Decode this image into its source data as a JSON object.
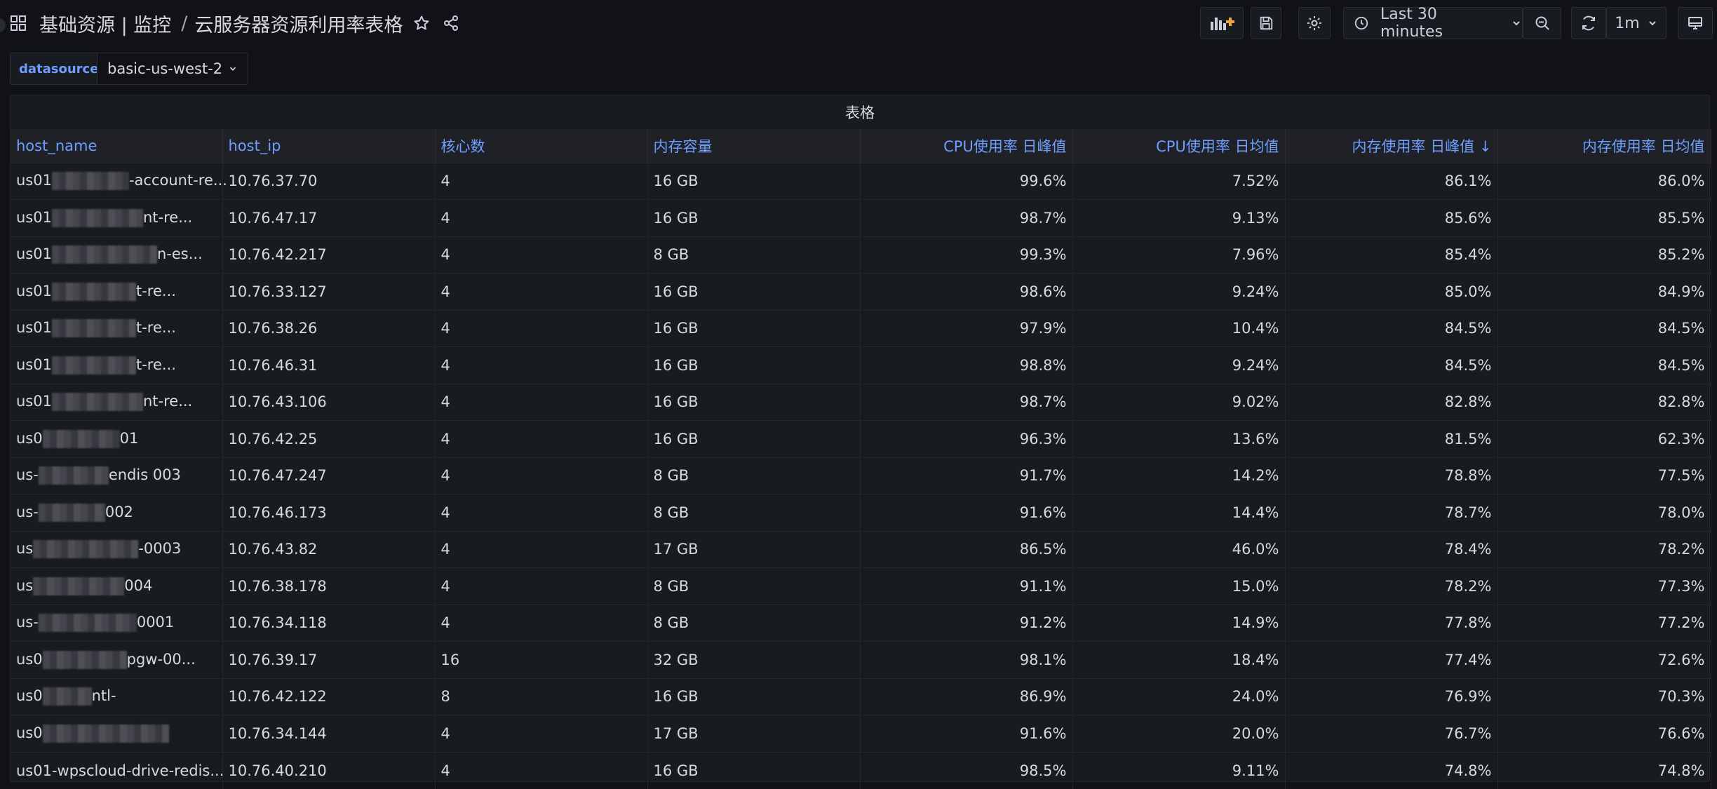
{
  "breadcrumb": {
    "parent": "基础资源 | 监控",
    "separator": "/",
    "title": "云服务器资源利用率表格"
  },
  "toolbar": {
    "time_range": "Last 30 minutes",
    "refresh_interval": "1m"
  },
  "variables": {
    "label": "datasource",
    "value": "basic-us-west-2"
  },
  "panel": {
    "title": "表格",
    "columns": [
      "host_name",
      "host_ip",
      "核心数",
      "内存容量",
      "CPU使用率 日峰值",
      "CPU使用率 日均值",
      "内存使用率 日峰值",
      "内存使用率 日均值"
    ],
    "sort_indicator": "↓",
    "rows": [
      {
        "name_start": "us01",
        "name_end": "-account-re...",
        "ip": "10.76.37.70",
        "cores": "4",
        "mem": "16 GB",
        "cpu_peak": "99.6%",
        "cpu_avg": "7.52%",
        "mem_peak": "86.1%",
        "mem_avg": "86.0%"
      },
      {
        "name_start": "us01",
        "name_end": "nt-re...",
        "ip": "10.76.47.17",
        "cores": "4",
        "mem": "16 GB",
        "cpu_peak": "98.7%",
        "cpu_avg": "9.13%",
        "mem_peak": "85.6%",
        "mem_avg": "85.5%"
      },
      {
        "name_start": "us01",
        "name_end": "n-es...",
        "ip": "10.76.42.217",
        "cores": "4",
        "mem": "8 GB",
        "cpu_peak": "99.3%",
        "cpu_avg": "7.96%",
        "mem_peak": "85.4%",
        "mem_avg": "85.2%"
      },
      {
        "name_start": "us01",
        "name_end": "t-re...",
        "ip": "10.76.33.127",
        "cores": "4",
        "mem": "16 GB",
        "cpu_peak": "98.6%",
        "cpu_avg": "9.24%",
        "mem_peak": "85.0%",
        "mem_avg": "84.9%"
      },
      {
        "name_start": "us01",
        "name_end": "t-re...",
        "ip": "10.76.38.26",
        "cores": "4",
        "mem": "16 GB",
        "cpu_peak": "97.9%",
        "cpu_avg": "10.4%",
        "mem_peak": "84.5%",
        "mem_avg": "84.5%"
      },
      {
        "name_start": "us01",
        "name_end": "t-re...",
        "ip": "10.76.46.31",
        "cores": "4",
        "mem": "16 GB",
        "cpu_peak": "98.8%",
        "cpu_avg": "9.24%",
        "mem_peak": "84.5%",
        "mem_avg": "84.5%"
      },
      {
        "name_start": "us01",
        "name_end": "nt-re...",
        "ip": "10.76.43.106",
        "cores": "4",
        "mem": "16 GB",
        "cpu_peak": "98.7%",
        "cpu_avg": "9.02%",
        "mem_peak": "82.8%",
        "mem_avg": "82.8%"
      },
      {
        "name_start": "us0",
        "name_end": "01",
        "ip": "10.76.42.25",
        "cores": "4",
        "mem": "16 GB",
        "cpu_peak": "96.3%",
        "cpu_avg": "13.6%",
        "mem_peak": "81.5%",
        "mem_avg": "62.3%"
      },
      {
        "name_start": "us-",
        "name_end": "endis 003",
        "ip": "10.76.47.247",
        "cores": "4",
        "mem": "8 GB",
        "cpu_peak": "91.7%",
        "cpu_avg": "14.2%",
        "mem_peak": "78.8%",
        "mem_avg": "77.5%"
      },
      {
        "name_start": "us-",
        "name_end": "002",
        "ip": "10.76.46.173",
        "cores": "4",
        "mem": "8 GB",
        "cpu_peak": "91.6%",
        "cpu_avg": "14.4%",
        "mem_peak": "78.7%",
        "mem_avg": "78.0%"
      },
      {
        "name_start": "us",
        "name_end": "-0003",
        "ip": "10.76.43.82",
        "cores": "4",
        "mem": "17 GB",
        "cpu_peak": "86.5%",
        "cpu_avg": "46.0%",
        "mem_peak": "78.4%",
        "mem_avg": "78.2%"
      },
      {
        "name_start": "us",
        "name_end": "004",
        "ip": "10.76.38.178",
        "cores": "4",
        "mem": "8 GB",
        "cpu_peak": "91.1%",
        "cpu_avg": "15.0%",
        "mem_peak": "78.2%",
        "mem_avg": "77.3%"
      },
      {
        "name_start": "us-",
        "name_end": "0001",
        "ip": "10.76.34.118",
        "cores": "4",
        "mem": "8 GB",
        "cpu_peak": "91.2%",
        "cpu_avg": "14.9%",
        "mem_peak": "77.8%",
        "mem_avg": "77.2%"
      },
      {
        "name_start": "us0",
        "name_end": "pgw-00...",
        "ip": "10.76.39.17",
        "cores": "16",
        "mem": "32 GB",
        "cpu_peak": "98.1%",
        "cpu_avg": "18.4%",
        "mem_peak": "77.4%",
        "mem_avg": "72.6%"
      },
      {
        "name_start": "us0",
        "name_end": "ntl-",
        "ip": "10.76.42.122",
        "cores": "8",
        "mem": "16 GB",
        "cpu_peak": "86.9%",
        "cpu_avg": "24.0%",
        "mem_peak": "76.9%",
        "mem_avg": "70.3%"
      },
      {
        "name_start": "us0",
        "name_end": "",
        "ip": "10.76.34.144",
        "cores": "4",
        "mem": "17 GB",
        "cpu_peak": "91.6%",
        "cpu_avg": "20.0%",
        "mem_peak": "76.7%",
        "mem_avg": "76.6%"
      },
      {
        "name_start": "us01-wpscloud-drive-redis...",
        "name_end": "",
        "ip": "10.76.40.210",
        "cores": "4",
        "mem": "16 GB",
        "cpu_peak": "98.5%",
        "cpu_avg": "9.11%",
        "mem_peak": "74.8%",
        "mem_avg": "74.8%"
      }
    ]
  }
}
